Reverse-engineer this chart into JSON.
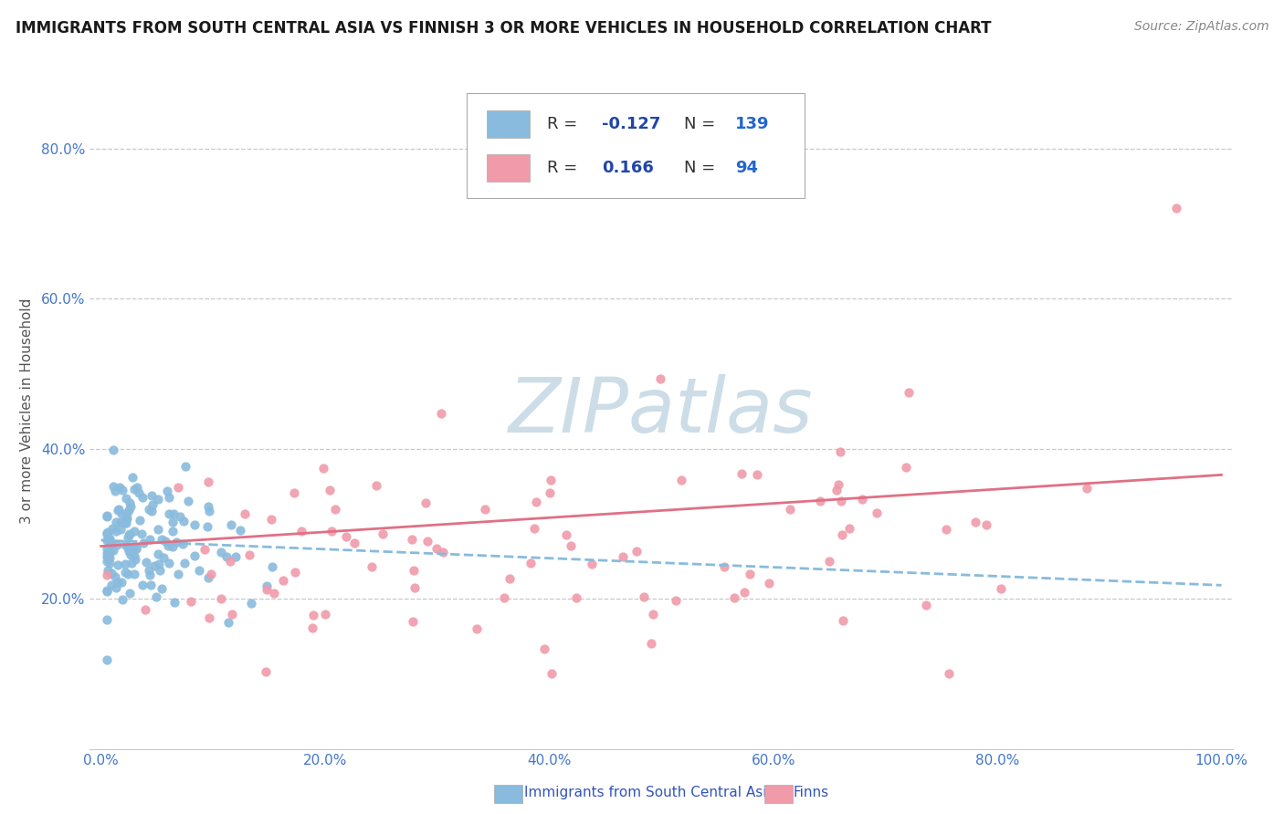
{
  "title": "IMMIGRANTS FROM SOUTH CENTRAL ASIA VS FINNISH 3 OR MORE VEHICLES IN HOUSEHOLD CORRELATION CHART",
  "source": "Source: ZipAtlas.com",
  "ylabel": "3 or more Vehicles in Household",
  "xlim": [
    0.0,
    1.0
  ],
  "ylim": [
    0.0,
    0.9
  ],
  "ytick_positions": [
    0.2,
    0.4,
    0.6,
    0.8
  ],
  "ytick_labels": [
    "20.0%",
    "40.0%",
    "60.0%",
    "80.0%"
  ],
  "xtick_positions": [
    0.0,
    0.2,
    0.4,
    0.6,
    0.8,
    1.0
  ],
  "xtick_labels": [
    "0.0%",
    "20.0%",
    "40.0%",
    "60.0%",
    "80.0%",
    "100.0%"
  ],
  "grid_color": "#c8c8c8",
  "background_color": "#ffffff",
  "tick_label_color": "#4477cc",
  "series": [
    {
      "name": "Immigrants from South Central Asia",
      "color": "#88bbdd",
      "R": -0.127,
      "N": 139,
      "line_style": "dashed",
      "line_color": "#88bbdd",
      "intercept": 0.278,
      "slope": -0.06
    },
    {
      "name": "Finns",
      "color": "#f09aaa",
      "R": 0.166,
      "N": 94,
      "line_style": "solid",
      "line_color": "#e07085",
      "intercept": 0.27,
      "slope": 0.095
    }
  ],
  "legend_R_label_color": "#333333",
  "legend_R_value_color": "#2244aa",
  "legend_N_label_color": "#333333",
  "legend_N_value_color": "#2266cc",
  "watermark": "ZIPatlas",
  "watermark_color": "#ccdde8",
  "watermark_fontsize": 60,
  "title_fontsize": 12,
  "source_fontsize": 10,
  "ylabel_fontsize": 11,
  "tick_fontsize": 11,
  "legend_fontsize": 13
}
